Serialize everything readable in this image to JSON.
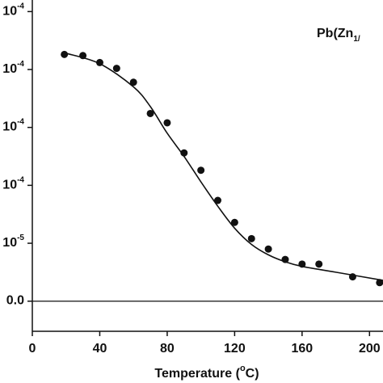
{
  "chart_data": {
    "type": "scatter",
    "annotation": {
      "base": "Pb(Zn",
      "sub": "1/"
    },
    "xlabel": {
      "before": "Temperature (",
      "sup": "o",
      "after": "C)"
    },
    "xlim": [
      0,
      208
    ],
    "xticks": [
      0,
      40,
      80,
      120,
      160,
      200
    ],
    "ylim": [
      -2.6e-05,
      0.00026
    ],
    "yticks": [
      {
        "value": 0,
        "label": "0.0"
      },
      {
        "value": 5e-05,
        "label": "10",
        "exp": "-5"
      },
      {
        "value": 0.0001,
        "label": "10",
        "exp": "-4"
      },
      {
        "value": 0.00015,
        "label": "10",
        "exp": "-4"
      },
      {
        "value": 0.0002,
        "label": "10",
        "exp": "-4"
      },
      {
        "value": 0.00025,
        "label": "10",
        "exp": "-4"
      }
    ],
    "hline": 0,
    "series": [
      {
        "kind": "points",
        "color": "#111111",
        "x": [
          19,
          30,
          40,
          50,
          60,
          70,
          80,
          90,
          100,
          110,
          120,
          130,
          140,
          150,
          160,
          170,
          190,
          206
        ],
        "values": [
          0.000213,
          0.000212,
          0.000206,
          0.000201,
          0.000189,
          0.000162,
          0.000154,
          0.000128,
          0.000113,
          8.7e-05,
          6.8e-05,
          5.4e-05,
          4.5e-05,
          3.6e-05,
          3.2e-05,
          3.2e-05,
          2.1e-05,
          1.6e-05
        ]
      },
      {
        "kind": "fit",
        "color": "#111111",
        "x": [
          20,
          40,
          60,
          70,
          80,
          90,
          100,
          110,
          120,
          130,
          140,
          150,
          160,
          180,
          208
        ],
        "values": [
          0.000214,
          0.000205,
          0.000185,
          0.000168,
          0.000145,
          0.000125,
          0.000103,
          8.2e-05,
          6.3e-05,
          4.9e-05,
          4e-05,
          3.4e-05,
          3e-05,
          2.5e-05,
          1.8e-05
        ]
      }
    ]
  }
}
